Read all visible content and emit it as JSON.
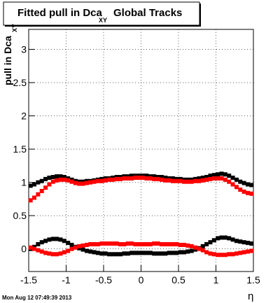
{
  "chart_data": {
    "type": "scatter",
    "title": "Fitted pull in Dca",
    "title_subscript": "XY",
    "title_suffix": "Global Tracks",
    "y_label": "pull in Dca",
    "y_label_subscript": "XY",
    "x_label": "η",
    "timestamp": "Mon Aug 12 07:49:39 2013",
    "xlim": [
      -1.5,
      1.5
    ],
    "ylim": [
      -0.34,
      3.3
    ],
    "xticks": [
      -1.5,
      -1,
      -0.5,
      0,
      0.5,
      1,
      1.5
    ],
    "yticks": [
      0,
      0.5,
      1,
      1.5,
      2,
      2.5,
      3
    ],
    "grid": true,
    "x": [
      -1.475,
      -1.425,
      -1.375,
      -1.325,
      -1.275,
      -1.225,
      -1.175,
      -1.125,
      -1.075,
      -1.025,
      -0.975,
      -0.925,
      -0.875,
      -0.825,
      -0.775,
      -0.725,
      -0.675,
      -0.625,
      -0.575,
      -0.525,
      -0.475,
      -0.425,
      -0.375,
      -0.325,
      -0.275,
      -0.225,
      -0.175,
      -0.125,
      -0.075,
      -0.025,
      0.025,
      0.075,
      0.125,
      0.175,
      0.225,
      0.275,
      0.325,
      0.375,
      0.425,
      0.475,
      0.525,
      0.575,
      0.625,
      0.675,
      0.725,
      0.775,
      0.825,
      0.875,
      0.925,
      0.975,
      1.025,
      1.075,
      1.125,
      1.175,
      1.225,
      1.275,
      1.325,
      1.375,
      1.425,
      1.475
    ],
    "series": [
      {
        "color": "#000000",
        "values": [
          0.95,
          0.97,
          1.0,
          1.02,
          1.05,
          1.07,
          1.08,
          1.09,
          1.09,
          1.08,
          1.06,
          1.04,
          1.02,
          1.01,
          1.01,
          1.02,
          1.02,
          1.03,
          1.04,
          1.05,
          1.06,
          1.06,
          1.07,
          1.08,
          1.08,
          1.09,
          1.09,
          1.1,
          1.1,
          1.1,
          1.1,
          1.1,
          1.09,
          1.09,
          1.08,
          1.08,
          1.07,
          1.06,
          1.06,
          1.05,
          1.05,
          1.04,
          1.04,
          1.04,
          1.05,
          1.06,
          1.07,
          1.08,
          1.1,
          1.11,
          1.12,
          1.13,
          1.12,
          1.1,
          1.07,
          1.04,
          1.01,
          0.99,
          0.97,
          0.96
        ]
      },
      {
        "color": "#ff0000",
        "values": [
          0.73,
          0.77,
          0.82,
          0.87,
          0.92,
          0.97,
          1.01,
          1.03,
          1.04,
          1.04,
          1.03,
          1.01,
          0.99,
          0.98,
          0.98,
          0.99,
          1.0,
          1.01,
          1.02,
          1.02,
          1.03,
          1.04,
          1.04,
          1.05,
          1.05,
          1.06,
          1.06,
          1.06,
          1.07,
          1.07,
          1.07,
          1.06,
          1.06,
          1.05,
          1.05,
          1.04,
          1.03,
          1.03,
          1.02,
          1.02,
          1.02,
          1.01,
          1.01,
          1.01,
          1.02,
          1.02,
          1.03,
          1.04,
          1.05,
          1.06,
          1.06,
          1.06,
          1.04,
          1.01,
          0.97,
          0.93,
          0.89,
          0.86,
          0.84,
          0.83
        ]
      },
      {
        "color": "#000000",
        "values": [
          0.0,
          0.03,
          0.07,
          0.1,
          0.12,
          0.14,
          0.15,
          0.15,
          0.14,
          0.12,
          0.09,
          0.06,
          0.03,
          0.01,
          -0.01,
          -0.03,
          -0.04,
          -0.05,
          -0.06,
          -0.07,
          -0.07,
          -0.08,
          -0.08,
          -0.08,
          -0.08,
          -0.07,
          -0.07,
          -0.06,
          -0.06,
          -0.06,
          -0.06,
          -0.06,
          -0.06,
          -0.07,
          -0.07,
          -0.07,
          -0.07,
          -0.06,
          -0.06,
          -0.06,
          -0.05,
          -0.05,
          -0.04,
          -0.03,
          -0.01,
          0.01,
          0.04,
          0.07,
          0.1,
          0.13,
          0.16,
          0.17,
          0.17,
          0.16,
          0.14,
          0.12,
          0.11,
          0.1,
          0.09,
          0.08
        ]
      },
      {
        "color": "#ff0000",
        "values": [
          0.02,
          0.0,
          -0.02,
          -0.04,
          -0.06,
          -0.07,
          -0.08,
          -0.08,
          -0.07,
          -0.05,
          -0.03,
          0.0,
          0.02,
          0.04,
          0.05,
          0.06,
          0.07,
          0.07,
          0.07,
          0.08,
          0.08,
          0.08,
          0.08,
          0.08,
          0.07,
          0.07,
          0.08,
          0.08,
          0.07,
          0.07,
          0.07,
          0.07,
          0.07,
          0.08,
          0.08,
          0.07,
          0.07,
          0.07,
          0.07,
          0.07,
          0.06,
          0.06,
          0.05,
          0.04,
          0.02,
          0.0,
          -0.02,
          -0.05,
          -0.07,
          -0.08,
          -0.09,
          -0.09,
          -0.09,
          -0.08,
          -0.08,
          -0.07,
          -0.06,
          -0.05,
          -0.04,
          -0.03
        ]
      }
    ]
  }
}
